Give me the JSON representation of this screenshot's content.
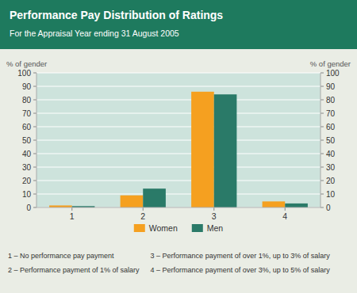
{
  "chart_data": {
    "type": "bar",
    "title": "Performance Pay Distribution of Ratings",
    "subtitle": "For the Appraisal Year ending 31 August 2005",
    "categories": [
      "1",
      "2",
      "3",
      "4"
    ],
    "series": [
      {
        "name": "Women",
        "color": "#f5a020",
        "values": [
          1.5,
          9.0,
          86.0,
          4.5
        ]
      },
      {
        "name": "Men",
        "color": "#2a7a68",
        "values": [
          1.0,
          14.0,
          84.0,
          3.0
        ]
      }
    ],
    "ylabel": "% of gender",
    "y2label": "% of gender",
    "ylim": [
      0,
      100
    ],
    "yticks": [
      0,
      10,
      20,
      30,
      40,
      50,
      60,
      70,
      80,
      90,
      100
    ],
    "y2lim": [
      0,
      100
    ],
    "y2ticks": [
      0,
      10,
      20,
      30,
      40,
      50,
      60,
      70,
      80,
      90,
      100
    ],
    "grid": true,
    "legend": "bottom",
    "annotations": [
      "1 – No performance pay payment",
      "2 – Performance payment of 1% of salary",
      "3 – Performance payment of over 1%, up to 3% of salary",
      "4 – Performance payment of over 3%, up to 5% of salary"
    ]
  }
}
